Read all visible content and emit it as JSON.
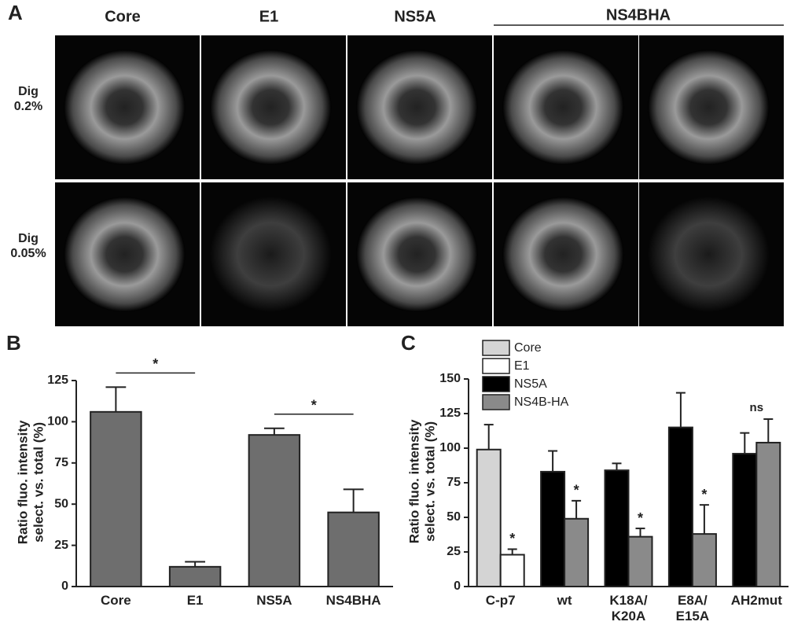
{
  "panel_a": {
    "label": "A",
    "columns": [
      "Core",
      "E1",
      "NS5A"
    ],
    "span_column": "NS4BHA",
    "rows": [
      "Dig\n0.2%",
      "Dig\n0.05%"
    ]
  },
  "chart_data": [
    {
      "panel": "B",
      "type": "bar",
      "ylabel": "Ratio fluo. intensity\nselect. vs. total (%)",
      "categories": [
        "Core",
        "E1",
        "NS5A",
        "NS4BHA"
      ],
      "values": [
        106,
        12,
        92,
        45
      ],
      "errors": [
        15,
        3,
        4,
        14
      ],
      "color": "#6e6e6e",
      "ylim": [
        0,
        125
      ],
      "yticks": [
        0,
        25,
        50,
        75,
        100,
        125
      ],
      "annotations": [
        {
          "text": "*",
          "between": [
            "Core",
            "E1"
          ]
        },
        {
          "text": "*",
          "between": [
            "NS5A",
            "NS4BHA"
          ]
        }
      ]
    },
    {
      "panel": "C",
      "type": "grouped_bar",
      "ylabel": "Ratio fluo. intensity\nselect. vs. total (%)",
      "categories": [
        "C-p7",
        "wt",
        "K18A/\nK20A",
        "E8A/\nE15A",
        "AH2mut"
      ],
      "series": [
        {
          "name": "Core",
          "color": "#d4d4d4",
          "values": [
            99,
            null,
            null,
            null,
            null
          ],
          "errors": [
            18,
            null,
            null,
            null,
            null
          ],
          "labels": [
            null,
            null,
            null,
            null,
            null
          ]
        },
        {
          "name": "E1",
          "color": "#ffffff",
          "values": [
            23,
            null,
            null,
            null,
            null
          ],
          "errors": [
            4,
            null,
            null,
            null,
            null
          ],
          "labels": [
            "*",
            null,
            null,
            null,
            null
          ]
        },
        {
          "name": "NS5A",
          "color": "#000000",
          "values": [
            null,
            83,
            84,
            115,
            96
          ],
          "errors": [
            null,
            15,
            5,
            25,
            15
          ],
          "labels": [
            null,
            null,
            null,
            null,
            null
          ]
        },
        {
          "name": "NS4B-HA",
          "color": "#8a8a8a",
          "values": [
            null,
            49,
            36,
            38,
            104
          ],
          "errors": [
            null,
            13,
            6,
            21,
            17
          ],
          "labels": [
            null,
            "*",
            "*",
            "*",
            null
          ]
        }
      ],
      "group_labels": [
        null,
        null,
        null,
        null,
        "ns"
      ],
      "ylim": [
        0,
        150
      ],
      "yticks": [
        0,
        25,
        50,
        75,
        100,
        125,
        150
      ]
    }
  ]
}
